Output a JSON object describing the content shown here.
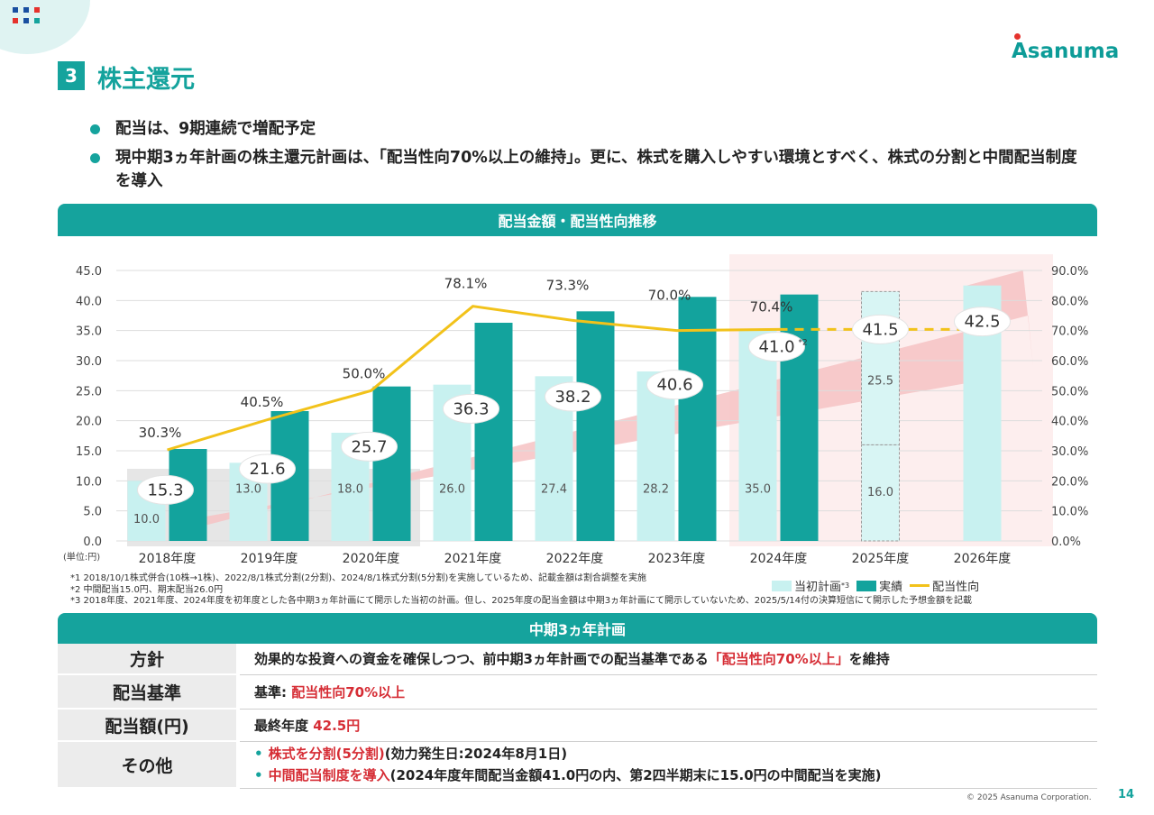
{
  "logo": {
    "text": "Asanuma",
    "colors": {
      "text": "#0d9c98",
      "accent": "#e5322d"
    }
  },
  "section": {
    "number": "3",
    "title": "株主還元"
  },
  "bullets": [
    "配当は、9期連続で増配予定",
    "現中期3ヵ年計画の株主還元計画は、「配当性向70%以上の維持」。更に、株式を購入しやすい環境とすべく、株式の分割と中間配当制度を導入"
  ],
  "chart_header": "配当金額・配当性向推移",
  "chart_data": {
    "type": "bar",
    "categories": [
      "2018年度",
      "2019年度",
      "2020年度",
      "2021年度",
      "2022年度",
      "2023年度",
      "2024年度",
      "2025年度",
      "2026年度"
    ],
    "unit_label": "(単位:円)",
    "y_left": {
      "min": 0,
      "max": 45,
      "step": 5,
      "ticks": [
        "0.0",
        "5.0",
        "10.0",
        "15.0",
        "20.0",
        "25.0",
        "30.0",
        "35.0",
        "40.0",
        "45.0"
      ]
    },
    "y_right": {
      "min": 0,
      "max": 90,
      "step": 10,
      "ticks": [
        "0.0%",
        "10.0%",
        "20.0%",
        "30.0%",
        "40.0%",
        "50.0%",
        "60.0%",
        "70.0%",
        "80.0%",
        "90.0%"
      ]
    },
    "series": [
      {
        "name": "当初計画",
        "values": [
          10.0,
          13.0,
          18.0,
          26.0,
          27.4,
          28.2,
          35.0,
          null,
          42.5
        ],
        "labels": [
          "10.0",
          "13.0",
          "18.0",
          "26.0",
          "27.4",
          "28.2",
          "35.0",
          "",
          ""
        ],
        "color": "#c8f1f0"
      },
      {
        "name": "実績",
        "values": [
          15.3,
          21.6,
          25.7,
          36.3,
          38.2,
          40.6,
          41.0,
          null,
          null
        ],
        "labels": [
          "15.3",
          "21.6",
          "25.7",
          "36.3",
          "38.2",
          "40.6",
          "41.0",
          "",
          ""
        ],
        "color": "#13a39d"
      },
      {
        "name": "配当性向",
        "values": [
          30.3,
          40.5,
          50.0,
          78.1,
          73.3,
          70.0,
          70.4,
          70.4,
          70.4
        ],
        "labels": [
          "30.3%",
          "40.5%",
          "50.0%",
          "78.1%",
          "73.3%",
          "70.0%",
          "70.4%",
          "",
          ""
        ],
        "color": "#f2c21a",
        "axis": "right"
      }
    ],
    "forecast_2025": {
      "lower": 16.0,
      "upper": 25.5,
      "total": 41.5,
      "lower_label": "16.0",
      "upper_label": "25.5",
      "total_label": "41.5"
    },
    "plan_2026_label": "42.5",
    "footnote_mark_2024": "*2",
    "legend_sup": "*3"
  },
  "notes": [
    "*1 2018/10/1株式併合(10株→1株)、2022/8/1株式分割(2分割)、2024/8/1株式分割(5分割)を実施しているため、記載金額は割合調整を実施",
    "*2 中間配当15.0円、期末配当26.0円",
    "*3 2018年度、2021年度、2024年度を初年度とした各中期3ヵ年計画にて開示した当初の計画。但し、2025年度の配当金額は中期3ヵ年計画にて開示していないため、2025/5/14付の決算短信にて開示した予想金額を記載"
  ],
  "plan_header": "中期3ヵ年計画",
  "plan": {
    "policy": {
      "label": "方針",
      "text_a": "効果的な投資への資金を確保しつつ、前中期3ヵ年計画での配当基準である",
      "text_red": "「配当性向70%以上」",
      "text_b": "を維持"
    },
    "standard": {
      "label": "配当基準",
      "text_a": "基準: ",
      "text_red": "配当性向70%以上"
    },
    "amount": {
      "label": "配当額(円)",
      "text_a": "最終年度 ",
      "text_red": "42.5円"
    },
    "other": {
      "label": "その他",
      "line1_mark": "•",
      "line1_red": "株式を分割(5分割)",
      "line1_rest": "(効力発生日:2024年8月1日)",
      "line2_mark": "•",
      "line2_red": "中間配当制度を導入",
      "line2_rest": "(2024年度年間配当金額41.0円の内、第2四半期末に15.0円の中間配当を実施)"
    }
  },
  "footer": {
    "copyright": "© 2025 Asanuma Corporation.",
    "page": "14"
  },
  "colors": {
    "accent": "#15a39d",
    "red": "#d62d35"
  }
}
